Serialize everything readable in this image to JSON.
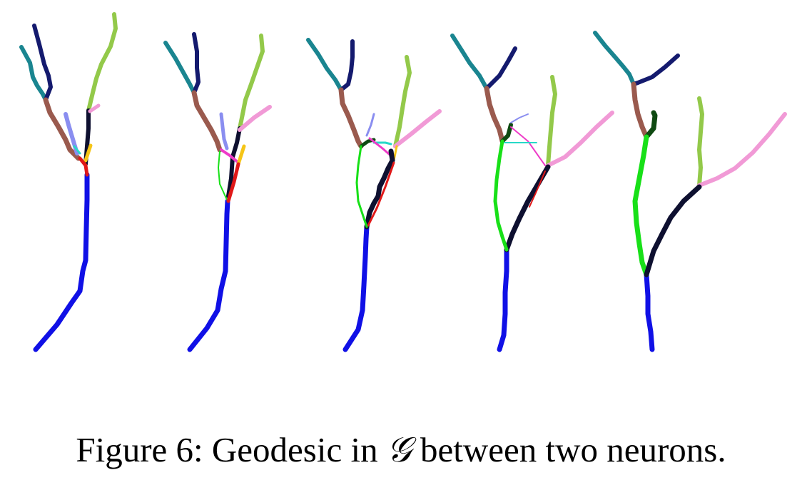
{
  "figure": {
    "name": "geodesic-neuron-sequence",
    "frame_count": 5,
    "branch_colors": {
      "trunk": "#1010e6",
      "teal": "#1a8590",
      "navy": "#141a6e",
      "lime": "#93c94a",
      "brown": "#9a5a4e",
      "lavender": "#8a8ef0",
      "black": "#0e1030",
      "yellow": "#f5c518",
      "red": "#e01818",
      "pink": "#f19ad6",
      "green": "#18e018",
      "darkgreen": "#0f4a12",
      "cyan": "#27d9c8",
      "magenta": "#ee3cc8"
    }
  },
  "caption": {
    "prefix": "Figure 6: Geodesic in ",
    "symbol": "𝒢",
    "suffix": " between two neurons."
  }
}
